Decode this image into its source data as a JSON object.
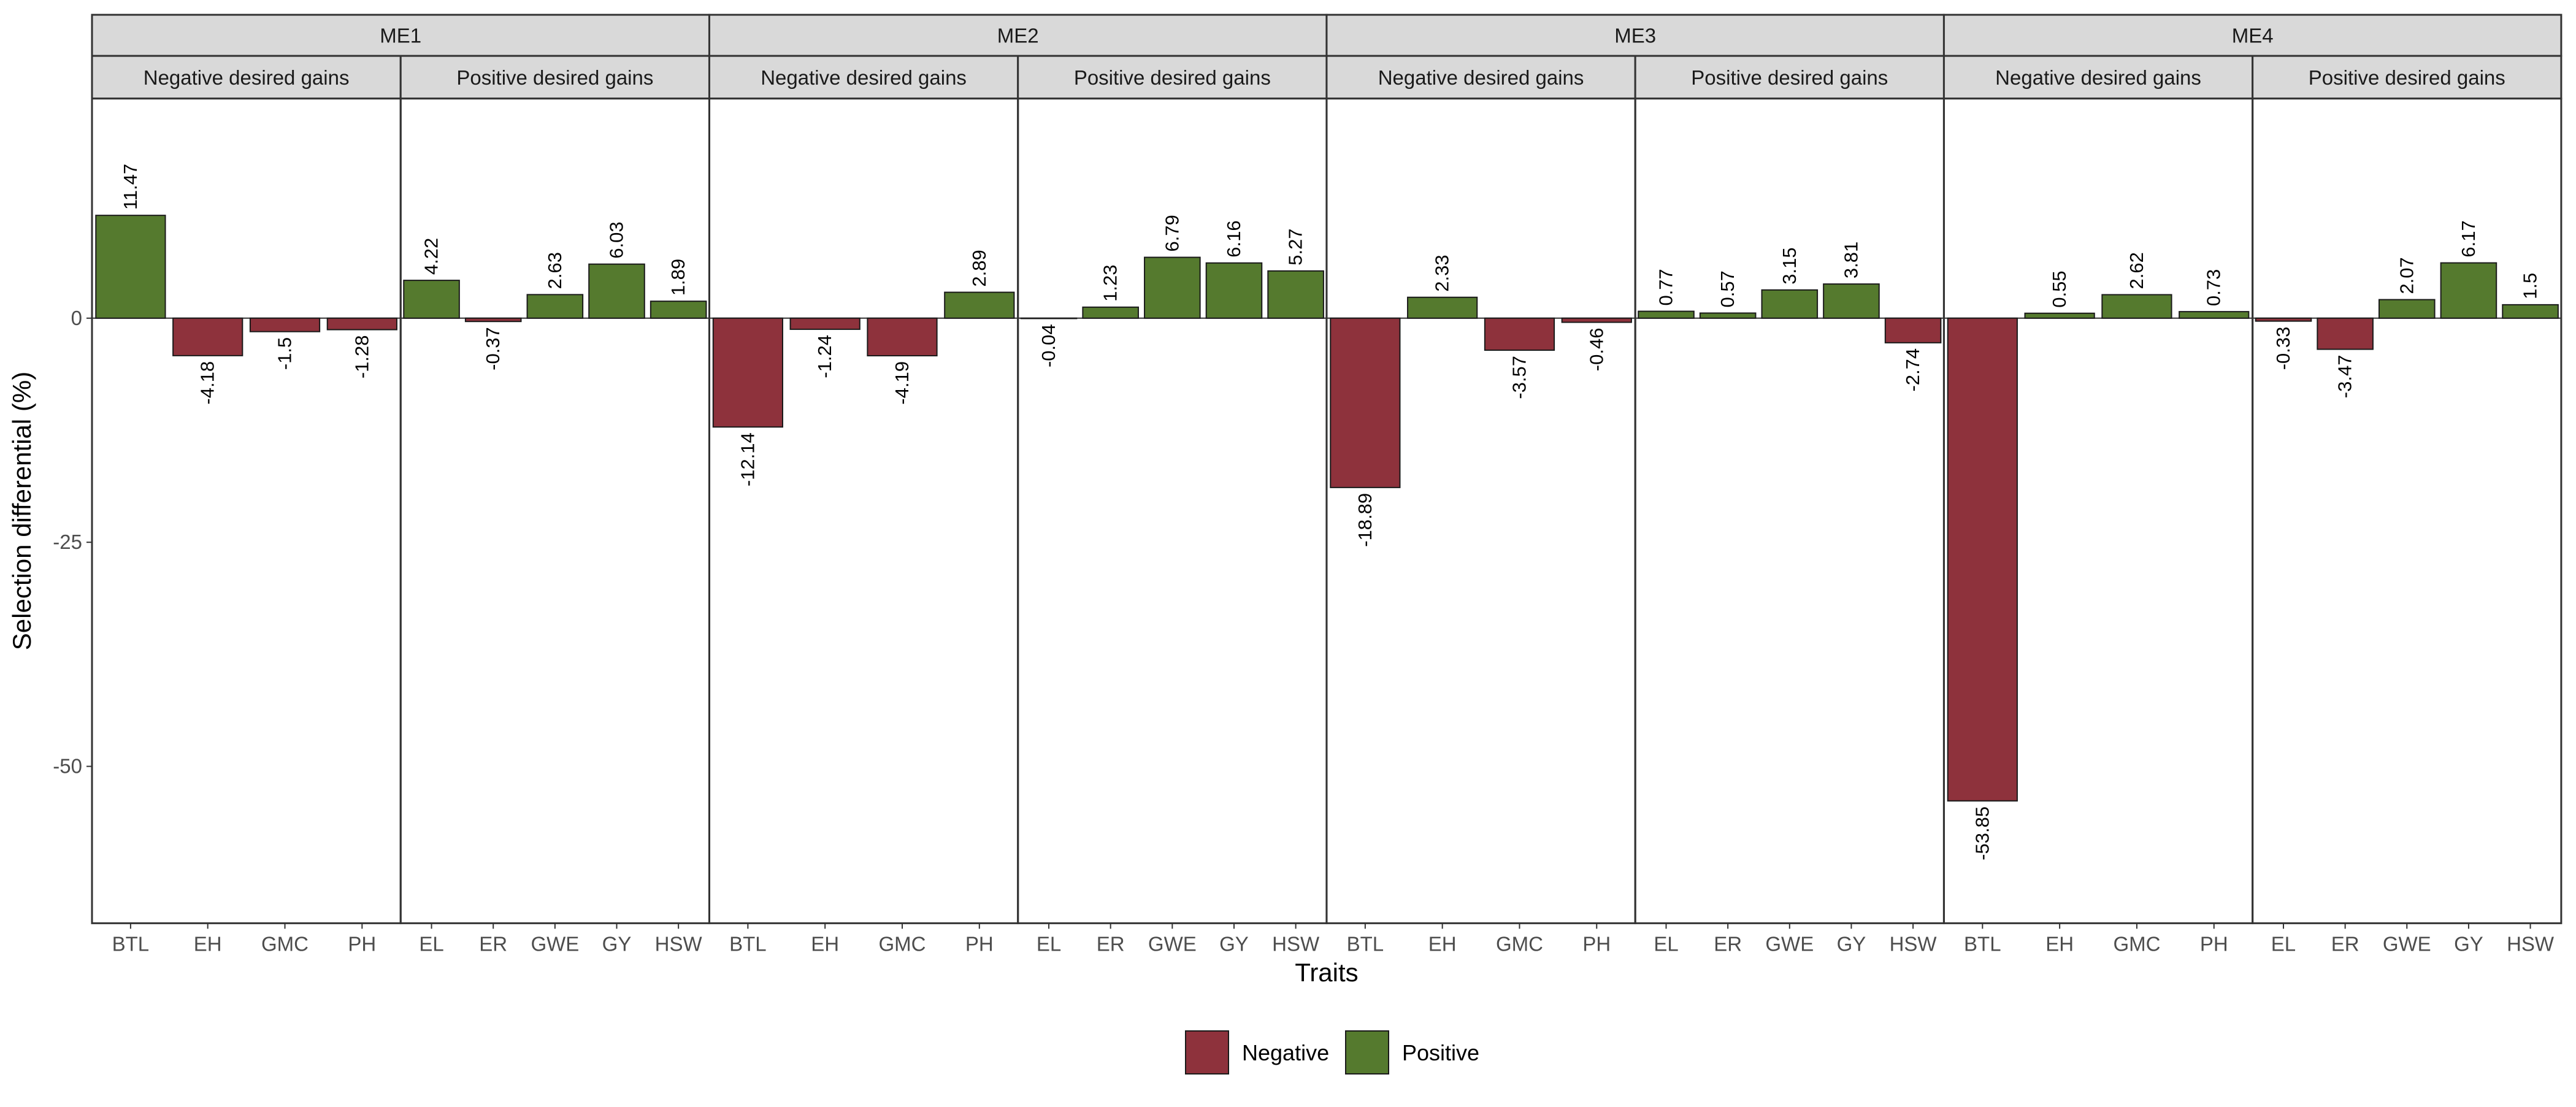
{
  "chart_data": {
    "type": "bar",
    "ylabel": "Selection differential (%)",
    "xlabel": "Traits",
    "ylim": [
      -67.5,
      24.5
    ],
    "yticks": [
      0,
      -25,
      -50
    ],
    "grid": false,
    "legend_position": "bottom",
    "legend": [
      {
        "label": "Negative",
        "color": "#8E323C"
      },
      {
        "label": "Positive",
        "color": "#557A2E"
      }
    ],
    "strip_colors": {
      "fill": "#D9D9D9",
      "border": "#333333"
    },
    "panels": [
      {
        "env": "ME1",
        "group": "Negative desired gains",
        "categories": [
          "BTL",
          "EH",
          "GMC",
          "PH"
        ],
        "values": [
          11.47,
          -4.18,
          -1.5,
          -1.28
        ],
        "labels": [
          "11.47",
          "-4.18",
          "-1.5",
          "-1.28"
        ]
      },
      {
        "env": "ME1",
        "group": "Positive desired gains",
        "categories": [
          "EL",
          "ER",
          "GWE",
          "GY",
          "HSW"
        ],
        "values": [
          4.22,
          -0.37,
          2.63,
          6.03,
          1.89
        ],
        "labels": [
          "4.22",
          "-0.37",
          "2.63",
          "6.03",
          "1.89"
        ]
      },
      {
        "env": "ME2",
        "group": "Negative desired gains",
        "categories": [
          "BTL",
          "EH",
          "GMC",
          "PH"
        ],
        "values": [
          -12.14,
          -1.24,
          -4.19,
          2.89
        ],
        "labels": [
          "-12.14",
          "-1.24",
          "-4.19",
          "2.89"
        ]
      },
      {
        "env": "ME2",
        "group": "Positive desired gains",
        "categories": [
          "EL",
          "ER",
          "GWE",
          "GY",
          "HSW"
        ],
        "values": [
          -0.04,
          1.23,
          6.79,
          6.16,
          5.27
        ],
        "labels": [
          "-0.04",
          "1.23",
          "6.79",
          "6.16",
          "5.27"
        ]
      },
      {
        "env": "ME3",
        "group": "Negative desired gains",
        "categories": [
          "BTL",
          "EH",
          "GMC",
          "PH"
        ],
        "values": [
          -18.89,
          2.33,
          -3.57,
          -0.46
        ],
        "labels": [
          "-18.89",
          "2.33",
          "-3.57",
          "-0.46"
        ]
      },
      {
        "env": "ME3",
        "group": "Positive desired gains",
        "categories": [
          "EL",
          "ER",
          "GWE",
          "GY",
          "HSW"
        ],
        "values": [
          0.77,
          0.57,
          3.15,
          3.81,
          -2.74
        ],
        "labels": [
          "0.77",
          "0.57",
          "3.15",
          "3.81",
          "-2.74"
        ]
      },
      {
        "env": "ME4",
        "group": "Negative desired gains",
        "categories": [
          "BTL",
          "EH",
          "GMC",
          "PH"
        ],
        "values": [
          -53.85,
          0.55,
          2.62,
          0.73
        ],
        "labels": [
          "-53.85",
          "0.55",
          "2.62",
          "0.73"
        ]
      },
      {
        "env": "ME4",
        "group": "Positive desired gains",
        "categories": [
          "EL",
          "ER",
          "GWE",
          "GY",
          "HSW"
        ],
        "values": [
          -0.33,
          -3.47,
          2.07,
          6.17,
          1.5
        ],
        "labels": [
          "-0.33",
          "-3.47",
          "2.07",
          "6.17",
          "1.5"
        ]
      }
    ]
  }
}
